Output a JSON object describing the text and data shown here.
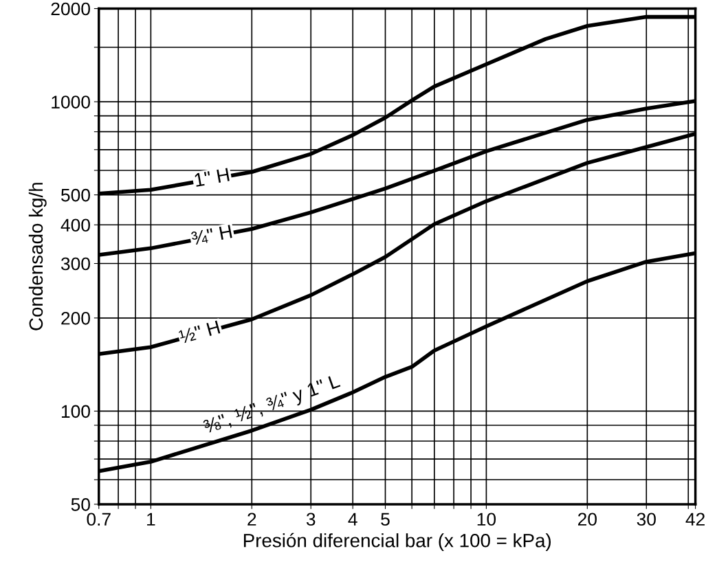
{
  "chart_data": {
    "type": "line",
    "xlabel": "Presión diferencial bar (x 100 = kPa)",
    "ylabel": "Condensado kg/h",
    "log": "xy",
    "grid": true,
    "marker": "none",
    "line_style": "solid",
    "legend": false,
    "xlim": [
      0.7,
      42
    ],
    "ylim": [
      50,
      2000
    ],
    "xticks": [
      0.7,
      {
        "value": 0.8,
        "label": null
      },
      {
        "value": 0.9,
        "label": null
      },
      1,
      2,
      3,
      4,
      5,
      {
        "value": 6,
        "label": null
      },
      {
        "value": 7,
        "label": null
      },
      {
        "value": 8,
        "label": null
      },
      {
        "value": 9,
        "label": null
      },
      10,
      20,
      30,
      {
        "value": 40,
        "label": null
      },
      42
    ],
    "yticks": [
      50,
      {
        "value": 60,
        "label": null
      },
      {
        "value": 70,
        "label": null
      },
      {
        "value": 80,
        "label": null
      },
      {
        "value": 90,
        "label": null
      },
      100,
      200,
      300,
      400,
      500,
      {
        "value": 600,
        "label": null
      },
      {
        "value": 700,
        "label": null
      },
      {
        "value": 800,
        "label": null
      },
      {
        "value": 900,
        "label": null
      },
      1000,
      {
        "value": 1500,
        "label": null
      },
      2000
    ],
    "series": [
      {
        "name": "1\" H",
        "color": "#000000",
        "x": [
          0.7,
          1,
          2,
          3,
          4,
          5,
          6,
          7,
          10,
          15,
          20,
          30,
          42
        ],
        "values": [
          505,
          519,
          593,
          678,
          780,
          888,
          1010,
          1120,
          1322,
          1594,
          1758,
          1880,
          1880
        ]
      },
      {
        "name": "¾\" H",
        "color": "#000000",
        "x": [
          0.7,
          1,
          2,
          3,
          4,
          5,
          7,
          10,
          20,
          30,
          42
        ],
        "values": [
          320,
          336,
          388,
          439,
          485,
          524,
          599,
          692,
          874,
          950,
          1005
        ]
      },
      {
        "name": "½\" H",
        "color": "#000000",
        "x": [
          0.7,
          1,
          2,
          3,
          4,
          5,
          7,
          10,
          20,
          30,
          42
        ],
        "values": [
          153,
          161,
          198,
          237,
          277,
          315,
          402,
          477,
          634,
          714,
          788
        ]
      },
      {
        "name": "⅜\", ½\", ¾\" y 1\" L",
        "color": "#000000",
        "x": [
          0.7,
          1,
          2,
          3,
          4,
          5,
          6,
          7,
          10,
          20,
          30,
          42
        ],
        "values": [
          64,
          68.6,
          86.5,
          101,
          115,
          129,
          139,
          157,
          188,
          263,
          304,
          324
        ]
      }
    ]
  }
}
